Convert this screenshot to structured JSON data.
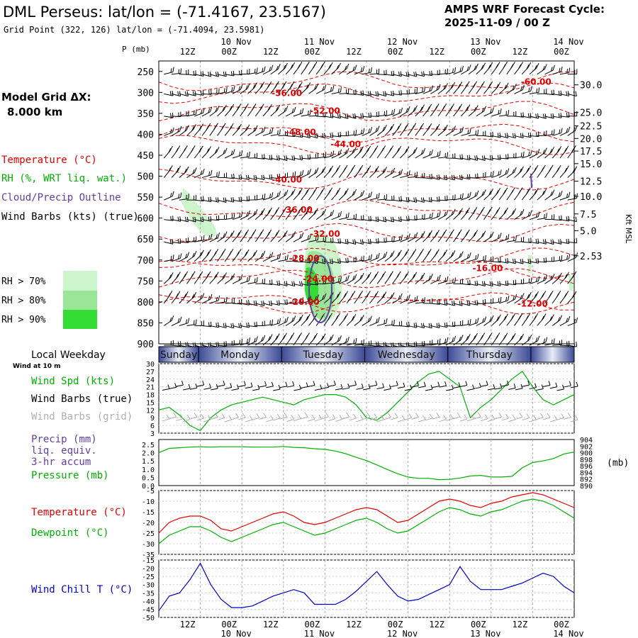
{
  "header": {
    "title": "DML Perseus:  lat/lon = (-71.4167, 23.5167)",
    "grid_point": "Grid Point (322, 126) lat/lon = (-71.4094, 23.5981)",
    "forecast_label": "AMPS WRF Forecast Cycle:",
    "forecast_cycle": "2025-11-09 / 00  Z"
  },
  "sidebar": {
    "model_grid_label": "Model Grid ΔX:",
    "model_grid_value": "8.000 km",
    "legend_temperature": "Temperature (°C)",
    "legend_rh": "RH (%, WRT liq. wat.)",
    "legend_cloud": "Cloud/Precip Outline",
    "legend_wind": "Wind Barbs (kts) (true)",
    "rh_70": "RH > 70%",
    "rh_80": "RH > 80%",
    "rh_90": "RH > 90%",
    "local_weekday": "Local Weekday",
    "wind_at_10m": "Wind at 10 m",
    "wind_spd": "Wind Spd (kts)",
    "wind_barbs_true": "Wind Barbs (true)",
    "wind_barbs_grid": "Wind Barbs (grid)",
    "precip": "Precip (mm)",
    "liq_equiv": "liq. equiv.",
    "accum": "3-hr accum",
    "pressure": "Pressure (mb)",
    "temperature": "Temperature (°C)",
    "dewpoint": "Dewpoint (°C)",
    "wind_chill": "Wind Chill T (°C)"
  },
  "colors": {
    "temperature": "#e00000",
    "rh": "#00b000",
    "cloud": "#6040a0",
    "wind_chill": "#0000c0",
    "wind_barbs_grid": "#b0b0b0",
    "rh70": "#ccf5cc",
    "rh80": "#99e699",
    "rh90": "#33dd33",
    "day_band": "#3c4a96"
  },
  "chart_data": {
    "type": "meteogram",
    "time_axis": {
      "hours": [
        0,
        12,
        24,
        36,
        48,
        60,
        72,
        84,
        96,
        108,
        120
      ],
      "labels": [
        "12Z",
        "00Z",
        "12Z",
        "00Z",
        "12Z",
        "00Z",
        "12Z",
        "00Z",
        "12Z",
        "00Z"
      ],
      "label_hours": [
        12,
        24,
        36,
        48,
        60,
        72,
        84,
        96,
        108,
        120
      ],
      "dates": [
        "10 Nov",
        "11 Nov",
        "12 Nov",
        "13 Nov",
        "14 Nov"
      ],
      "date_hours": [
        24,
        48,
        72,
        96,
        120
      ]
    },
    "weekdays": [
      "Sunday",
      "Monday",
      "Tuesday",
      "Wednesday",
      "Thursday"
    ],
    "pressure_levels": {
      "ylabel": "P (mb)",
      "ticks": [
        250,
        300,
        350,
        400,
        450,
        500,
        550,
        600,
        650,
        700,
        750,
        800,
        850,
        900
      ],
      "range": [
        225,
        900
      ]
    },
    "height_axis": {
      "label": "Kft MSL",
      "ticks": [
        30.0,
        25.0,
        22.5,
        20.0,
        17.5,
        15.0,
        12.5,
        10.0,
        7.5,
        5.0,
        2.53
      ],
      "tick_labels": [
        "30.0",
        "25.0",
        "22.5",
        "20.0",
        "17.5",
        "15.0",
        "12.5",
        "10.0",
        "7.5",
        "5.0",
        "2.53"
      ],
      "tick_pressures": [
        282,
        348,
        380,
        410,
        440,
        470,
        512,
        548,
        590,
        630,
        690
      ]
    },
    "temperature_contours": [
      {
        "label": "-60.00",
        "t": 109,
        "p": 275
      },
      {
        "label": "-56.00",
        "t": 37,
        "p": 302
      },
      {
        "label": "-52.00",
        "t": 48,
        "p": 344
      },
      {
        "label": "-48.00",
        "t": 41,
        "p": 395
      },
      {
        "label": "-44.00",
        "t": 54,
        "p": 424
      },
      {
        "label": "-40.00",
        "t": 37,
        "p": 508
      },
      {
        "label": "-36.00",
        "t": 40,
        "p": 580
      },
      {
        "label": "-32.00",
        "t": 48,
        "p": 638
      },
      {
        "label": "-28.00",
        "t": 42,
        "p": 696
      },
      {
        "label": "-24.00",
        "t": 46,
        "p": 745
      },
      {
        "label": "-20.00",
        "t": 42,
        "p": 800
      },
      {
        "label": "-16.00",
        "t": 95,
        "p": 720
      },
      {
        "label": "-12.00",
        "t": 108,
        "p": 804
      }
    ],
    "surface_wind": {
      "ylabel": "Wind Spd (kts)",
      "yticks": [
        3,
        6,
        9,
        12,
        15,
        18,
        21,
        24,
        27,
        30
      ],
      "ylim": [
        3,
        30
      ],
      "hours": [
        0,
        3,
        6,
        9,
        12,
        15,
        18,
        21,
        24,
        27,
        30,
        33,
        36,
        39,
        42,
        45,
        48,
        51,
        54,
        57,
        60,
        63,
        66,
        69,
        72,
        75,
        78,
        81,
        84,
        87,
        90,
        93,
        96,
        99,
        102,
        105,
        108,
        111,
        114,
        117,
        120
      ],
      "values": [
        12,
        13,
        10,
        6,
        4,
        9,
        12,
        14,
        15,
        16,
        17,
        16,
        15,
        14,
        16,
        17,
        18,
        18,
        17,
        14,
        9,
        8,
        11,
        15,
        19,
        23,
        26,
        27,
        24,
        21,
        9,
        13,
        16,
        20,
        24,
        27,
        21,
        16,
        14,
        16,
        18
      ]
    },
    "pressure": {
      "ylabel": "Pressure (mb)",
      "yticks": [
        890,
        892,
        894,
        896,
        898,
        900,
        902,
        904
      ],
      "ylim": [
        890,
        904
      ],
      "precip_yticks": [
        0.0,
        0.5,
        1.0,
        1.5,
        2.0,
        2.5
      ],
      "precip_tick_labels": [
        "0.0",
        "0.5",
        "1.0",
        "1.5",
        "2.0",
        "2.5"
      ],
      "precip_ylim": [
        0,
        2.8
      ],
      "unit": "(mb)",
      "hours": [
        0,
        3,
        6,
        9,
        12,
        15,
        18,
        21,
        24,
        27,
        30,
        33,
        36,
        39,
        42,
        45,
        48,
        51,
        54,
        57,
        60,
        63,
        66,
        69,
        72,
        75,
        78,
        81,
        84,
        87,
        90,
        93,
        96,
        99,
        102,
        105,
        108,
        111,
        114,
        117,
        120
      ],
      "values": [
        900.0,
        901.3,
        901.5,
        901.7,
        901.8,
        901.7,
        901.8,
        901.8,
        901.8,
        901.7,
        901.7,
        901.7,
        901.9,
        901.6,
        901.5,
        901.2,
        901.0,
        900.5,
        899.7,
        898.6,
        897.6,
        896.3,
        894.9,
        893.6,
        892.6,
        892.2,
        892.2,
        891.8,
        891.9,
        892.3,
        892.9,
        893.1,
        892.6,
        892.6,
        892.8,
        895.4,
        897.0,
        897.5,
        898.2,
        899.6,
        900.2
      ]
    },
    "temperature": {
      "yticks": [
        -35,
        -30,
        -25,
        -20,
        -15,
        -10,
        -5
      ],
      "ylim": [
        -35,
        -5
      ],
      "hours": [
        0,
        3,
        6,
        9,
        12,
        15,
        18,
        21,
        24,
        27,
        30,
        33,
        36,
        39,
        42,
        45,
        48,
        51,
        54,
        57,
        60,
        63,
        66,
        69,
        72,
        75,
        78,
        81,
        84,
        87,
        90,
        93,
        96,
        99,
        102,
        105,
        108,
        111,
        114,
        117,
        120
      ],
      "temperature_values": [
        -25,
        -20,
        -18,
        -17,
        -17,
        -19,
        -23,
        -24,
        -22,
        -20,
        -18,
        -16,
        -15,
        -17,
        -20,
        -21,
        -20,
        -18,
        -16,
        -14,
        -13,
        -14,
        -17,
        -20,
        -19,
        -16,
        -13,
        -10,
        -9,
        -10,
        -12,
        -13,
        -11,
        -10,
        -8,
        -7,
        -6,
        -7,
        -9,
        -11,
        -13
      ],
      "dewpoint_values": [
        -30,
        -26,
        -24,
        -22,
        -22,
        -24,
        -27,
        -29,
        -27,
        -25,
        -23,
        -21,
        -20,
        -22,
        -24,
        -26,
        -25,
        -23,
        -21,
        -19,
        -18,
        -20,
        -23,
        -25,
        -24,
        -21,
        -18,
        -15,
        -13,
        -14,
        -16,
        -17,
        -15,
        -14,
        -12,
        -10,
        -9,
        -10,
        -12,
        -15,
        -18
      ]
    },
    "wind_chill": {
      "yticks": [
        -50,
        -45,
        -40,
        -35,
        -30,
        -25,
        -20,
        -15
      ],
      "ylim": [
        -50,
        -15
      ],
      "hours": [
        0,
        3,
        6,
        9,
        12,
        15,
        18,
        21,
        24,
        27,
        30,
        33,
        36,
        39,
        42,
        45,
        48,
        51,
        54,
        57,
        60,
        63,
        66,
        69,
        72,
        75,
        78,
        81,
        84,
        87,
        90,
        93,
        96,
        99,
        102,
        105,
        108,
        111,
        114,
        117,
        120
      ],
      "values": [
        -46,
        -37,
        -35,
        -27,
        -17,
        -30,
        -39,
        -44,
        -44,
        -43,
        -40,
        -37,
        -35,
        -33,
        -35,
        -42,
        -42,
        -42,
        -39,
        -34,
        -28,
        -22,
        -30,
        -37,
        -40,
        -39,
        -36,
        -33,
        -30,
        -19,
        -28,
        -33,
        -33,
        -33,
        -31,
        -29,
        -26,
        -23,
        -25,
        -31,
        -35
      ]
    }
  }
}
